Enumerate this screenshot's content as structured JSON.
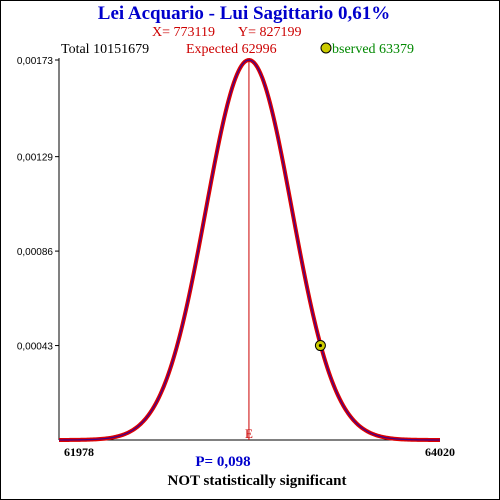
{
  "title": "Lei Acquario - Lui Sagittario  0,61%",
  "x_label": "X= 773119",
  "y_label": "Y= 827199",
  "total_label": "Total  10151679",
  "expected_label": "Expected  62996",
  "observed_label": "bserved  63379",
  "p_value_label": "P= 0,098",
  "significance_label": "NOT statistically significant",
  "expected_marker_label": "E",
  "colors": {
    "title": "#0000cc",
    "xy": "#cc0000",
    "total": "#000000",
    "expected": "#cc0000",
    "observed": "#008800",
    "curve_outer": "#dd0000",
    "curve_inner": "#440088",
    "expected_line": "#cc0000",
    "marker_fill": "#cccc00"
  },
  "chart_data": {
    "type": "line",
    "title": "Lei Acquario - Lui Sagittario  0,61%",
    "xlabel": "",
    "ylabel": "",
    "xlim": [
      61978,
      64020
    ],
    "ylim": [
      0,
      0.00173
    ],
    "x_tick_labels": [
      "61978",
      "64020"
    ],
    "y_tick_labels": [
      "0,00043",
      "0,00086",
      "0,00129",
      "0,00173"
    ],
    "y_ticks": [
      0.00043,
      0.00086,
      0.00129,
      0.00173
    ],
    "distribution": {
      "kind": "normal",
      "mean": 62996,
      "std_dev": 230.6,
      "peak_density": 0.00173
    },
    "expected": 62996,
    "observed": 63379,
    "observed_density": 0.00043,
    "grid": false,
    "legend": "none"
  }
}
